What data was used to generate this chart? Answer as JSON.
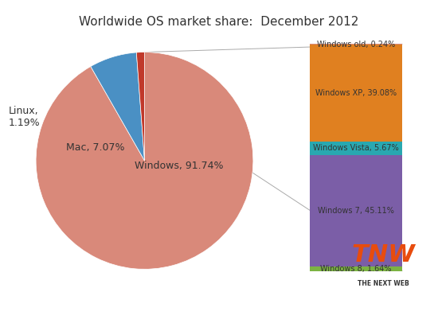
{
  "title": "Worldwide OS market share:  December 2012",
  "pie_labels": [
    "Windows",
    "Mac",
    "Linux"
  ],
  "pie_values": [
    91.74,
    7.07,
    1.19
  ],
  "pie_colors": [
    "#d9897a",
    "#4a90c4",
    "#c0392b"
  ],
  "pie_label_texts": [
    "Windows, 91.74%",
    "Mac, 7.07%",
    "Linux,\n1.19%"
  ],
  "bar_labels": [
    "Windows 8, 1.64%",
    "Windows 7, 45.11%",
    "Windows Vista, 5.67%",
    "Windows XP, 39.08%",
    "Windows old, 0.24%"
  ],
  "bar_values": [
    1.64,
    45.11,
    5.67,
    39.08,
    0.24
  ],
  "bar_colors": [
    "#7cb342",
    "#7b5ea7",
    "#29a8b0",
    "#e08020",
    "#d9897a"
  ],
  "tnw_color": "#e84c0e",
  "background_color": "#ffffff"
}
